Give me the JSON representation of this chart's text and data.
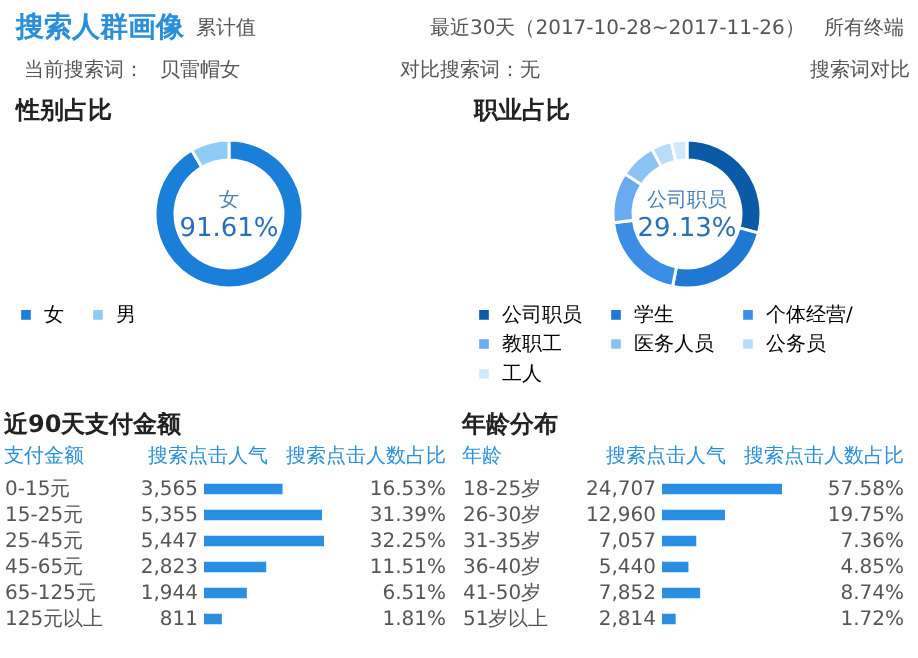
{
  "chart_data": [
    {
      "type": "other",
      "title": "搜索人群画像",
      "annotations": [
        "累计值",
        "最近30天（2017-10-28~2017-11-26）",
        "所有终端",
        "当前搜索词：",
        "贝雷帽女",
        "对比搜索词：无",
        "搜索词对比"
      ]
    },
    {
      "type": "donut",
      "title": "性别占比",
      "categories": [
        "女",
        "男"
      ],
      "values": [
        91.61,
        8.39
      ],
      "colors": [
        "#1a7fd9",
        "#8ecbf7"
      ],
      "legend": "bottom",
      "annotations": [
        "女",
        "91.61%"
      ]
    },
    {
      "type": "donut",
      "title": "职业占比",
      "categories": [
        "公司职员",
        "学生",
        "个体经营/",
        "教职工",
        "医务人员",
        "公务员",
        "工人"
      ],
      "values": [
        29.13,
        24,
        20,
        11,
        8,
        4.5,
        3.37
      ],
      "colors": [
        "#0b5aa8",
        "#1f78d1",
        "#3a8ee6",
        "#6aaaf0",
        "#8cc3f5",
        "#b6dcfa",
        "#d0eafc"
      ],
      "legend": "bottom",
      "annotations": [
        "公司职员",
        "29.13%"
      ]
    },
    {
      "type": "bar",
      "orientation": "horizontal",
      "title": "近90天支付金额",
      "ylabel": "支付金额",
      "xlabel": "搜索点击人气",
      "categories": [
        "0-15元",
        "15-25元",
        "25-45元",
        "45-65元",
        "65-125元",
        "125元以上"
      ],
      "values": [
        3565,
        5355,
        5447,
        2823,
        1944,
        811
      ],
      "value_labels": [
        "3,565",
        "5,355",
        "5,447",
        "2,823",
        "1,944",
        "811"
      ],
      "color": "#2a8fe0",
      "tick_labels": "y",
      "annotations": [
        "搜索点击人数占比",
        "16.53%",
        "31.39%",
        "32.25%",
        "11.51%",
        "6.51%",
        "1.81%"
      ]
    },
    {
      "type": "bar",
      "orientation": "horizontal",
      "title": "年龄分布",
      "ylabel": "年龄",
      "xlabel": "搜索点击人气",
      "categories": [
        "18-25岁",
        "26-30岁",
        "31-35岁",
        "36-40岁",
        "41-50岁",
        "51岁以上"
      ],
      "values": [
        24707,
        12960,
        7057,
        5440,
        7852,
        2814
      ],
      "value_labels": [
        "24,707",
        "12,960",
        "7,057",
        "5,440",
        "7,852",
        "2,814"
      ],
      "color": "#2a8fe0",
      "tick_labels": "y",
      "annotations": [
        "搜索点击人数占比",
        "57.58%",
        "19.75%",
        "7.36%",
        "4.85%",
        "8.74%",
        "1.72%"
      ]
    }
  ]
}
